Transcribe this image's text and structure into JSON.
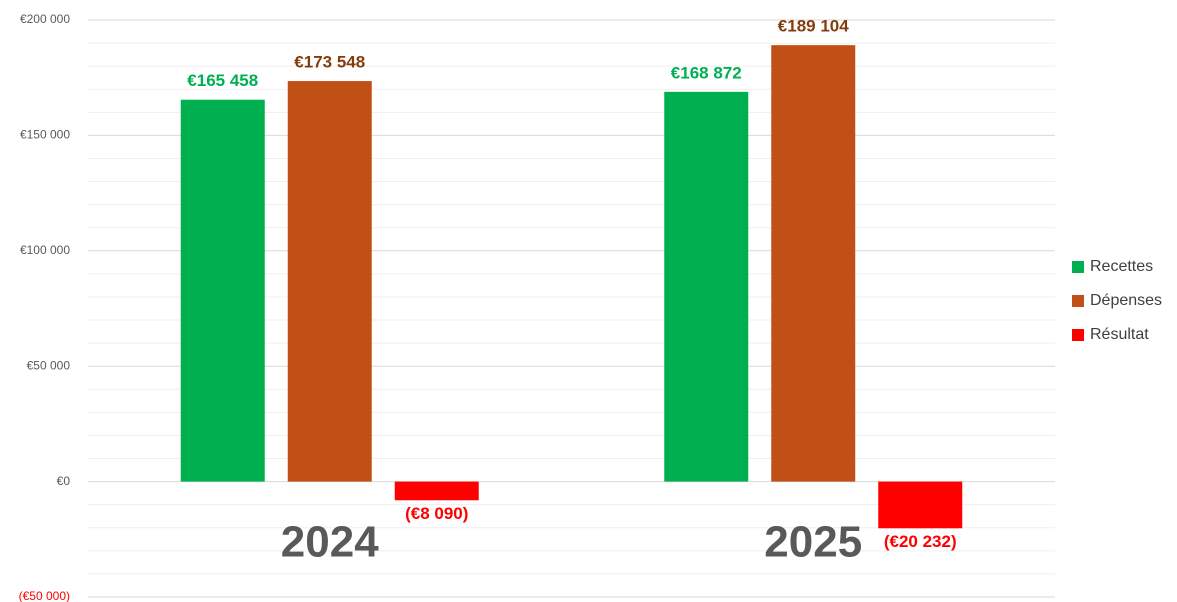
{
  "chart_data": {
    "type": "bar",
    "categories": [
      "2024",
      "2025"
    ],
    "series": [
      {
        "name": "Recettes",
        "color": "#00b050",
        "label_color": "#00b050",
        "values": [
          165458,
          168872
        ],
        "value_labels": [
          "€165 458",
          "€168 872"
        ]
      },
      {
        "name": "Dépenses",
        "color": "#c05015",
        "label_color": "#843c0c",
        "values": [
          173548,
          189104
        ],
        "value_labels": [
          "€173 548",
          "€189 104"
        ]
      },
      {
        "name": "Résultat",
        "color": "#ff0000",
        "label_color": "#ff0000",
        "values": [
          -8090,
          -20232
        ],
        "value_labels": [
          "(€8 090)",
          "(€20 232)"
        ]
      }
    ],
    "ylim": [
      -50000,
      200000
    ],
    "yticks": [
      {
        "value": -50000,
        "label": "(€50 000)"
      },
      {
        "value": 0,
        "label": "€0"
      },
      {
        "value": 50000,
        "label": "€50 000"
      },
      {
        "value": 100000,
        "label": "€100 000"
      },
      {
        "value": 150000,
        "label": "€150 000"
      },
      {
        "value": 200000,
        "label": "€200 000"
      }
    ],
    "minor_yticks": [
      -40000,
      -30000,
      -20000,
      -10000,
      10000,
      20000,
      30000,
      40000,
      60000,
      70000,
      80000,
      90000,
      110000,
      120000,
      130000,
      140000,
      160000,
      170000,
      180000,
      190000
    ],
    "negative_color": "#ff0000",
    "grid": true,
    "legend": "right"
  }
}
